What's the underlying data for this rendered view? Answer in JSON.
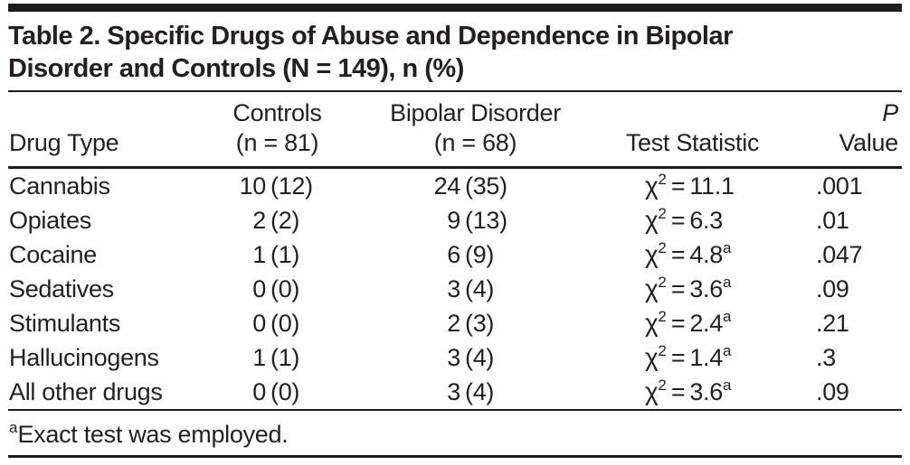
{
  "colors": {
    "text": "#231f20",
    "rule": "#1c1c1c",
    "background": "#ffffff"
  },
  "title": {
    "line1": "Table 2. Specific Drugs of Abuse and Dependence in Bipolar",
    "line2": "Disorder and Controls (N = 149), n (%)"
  },
  "header": {
    "drug_type": "Drug Type",
    "controls_group": "Controls",
    "controls_n": "(n = 81)",
    "bipolar_group": "Bipolar Disorder",
    "bipolar_n": "(n = 68)",
    "test_statistic": "Test Statistic",
    "p_italic": "P",
    "p_rest": "Value"
  },
  "rows": [
    {
      "drug": "Cannabis",
      "controls_n": "10",
      "controls_pct": "(12)",
      "bipolar_n": "24",
      "bipolar_pct": "(35)",
      "chi": "χ",
      "chi_sup": "2",
      "eq": "=",
      "stat": "11.1",
      "note": "",
      "p": ".001"
    },
    {
      "drug": "Opiates",
      "controls_n": "2",
      "controls_pct": "(2)",
      "bipolar_n": "9",
      "bipolar_pct": "(13)",
      "chi": "χ",
      "chi_sup": "2",
      "eq": "=",
      "stat": "6.3",
      "note": "",
      "p": ".01"
    },
    {
      "drug": "Cocaine",
      "controls_n": "1",
      "controls_pct": "(1)",
      "bipolar_n": "6",
      "bipolar_pct": "(9)",
      "chi": "χ",
      "chi_sup": "2",
      "eq": "=",
      "stat": "4.8",
      "note": "a",
      "p": ".047"
    },
    {
      "drug": "Sedatives",
      "controls_n": "0",
      "controls_pct": "(0)",
      "bipolar_n": "3",
      "bipolar_pct": "(4)",
      "chi": "χ",
      "chi_sup": "2",
      "eq": "=",
      "stat": "3.6",
      "note": "a",
      "p": ".09"
    },
    {
      "drug": "Stimulants",
      "controls_n": "0",
      "controls_pct": "(0)",
      "bipolar_n": "2",
      "bipolar_pct": "(3)",
      "chi": "χ",
      "chi_sup": "2",
      "eq": "=",
      "stat": "2.4",
      "note": "a",
      "p": ".21"
    },
    {
      "drug": "Hallucinogens",
      "controls_n": "1",
      "controls_pct": "(1)",
      "bipolar_n": "3",
      "bipolar_pct": "(4)",
      "chi": "χ",
      "chi_sup": "2",
      "eq": "=",
      "stat": "1.4",
      "note": "a",
      "p": ".3"
    },
    {
      "drug": "All other drugs",
      "controls_n": "0",
      "controls_pct": "(0)",
      "bipolar_n": "3",
      "bipolar_pct": "(4)",
      "chi": "χ",
      "chi_sup": "2",
      "eq": "=",
      "stat": "3.6",
      "note": "a",
      "p": ".09"
    }
  ],
  "footnote": {
    "marker": "a",
    "text": "Exact test was employed."
  }
}
